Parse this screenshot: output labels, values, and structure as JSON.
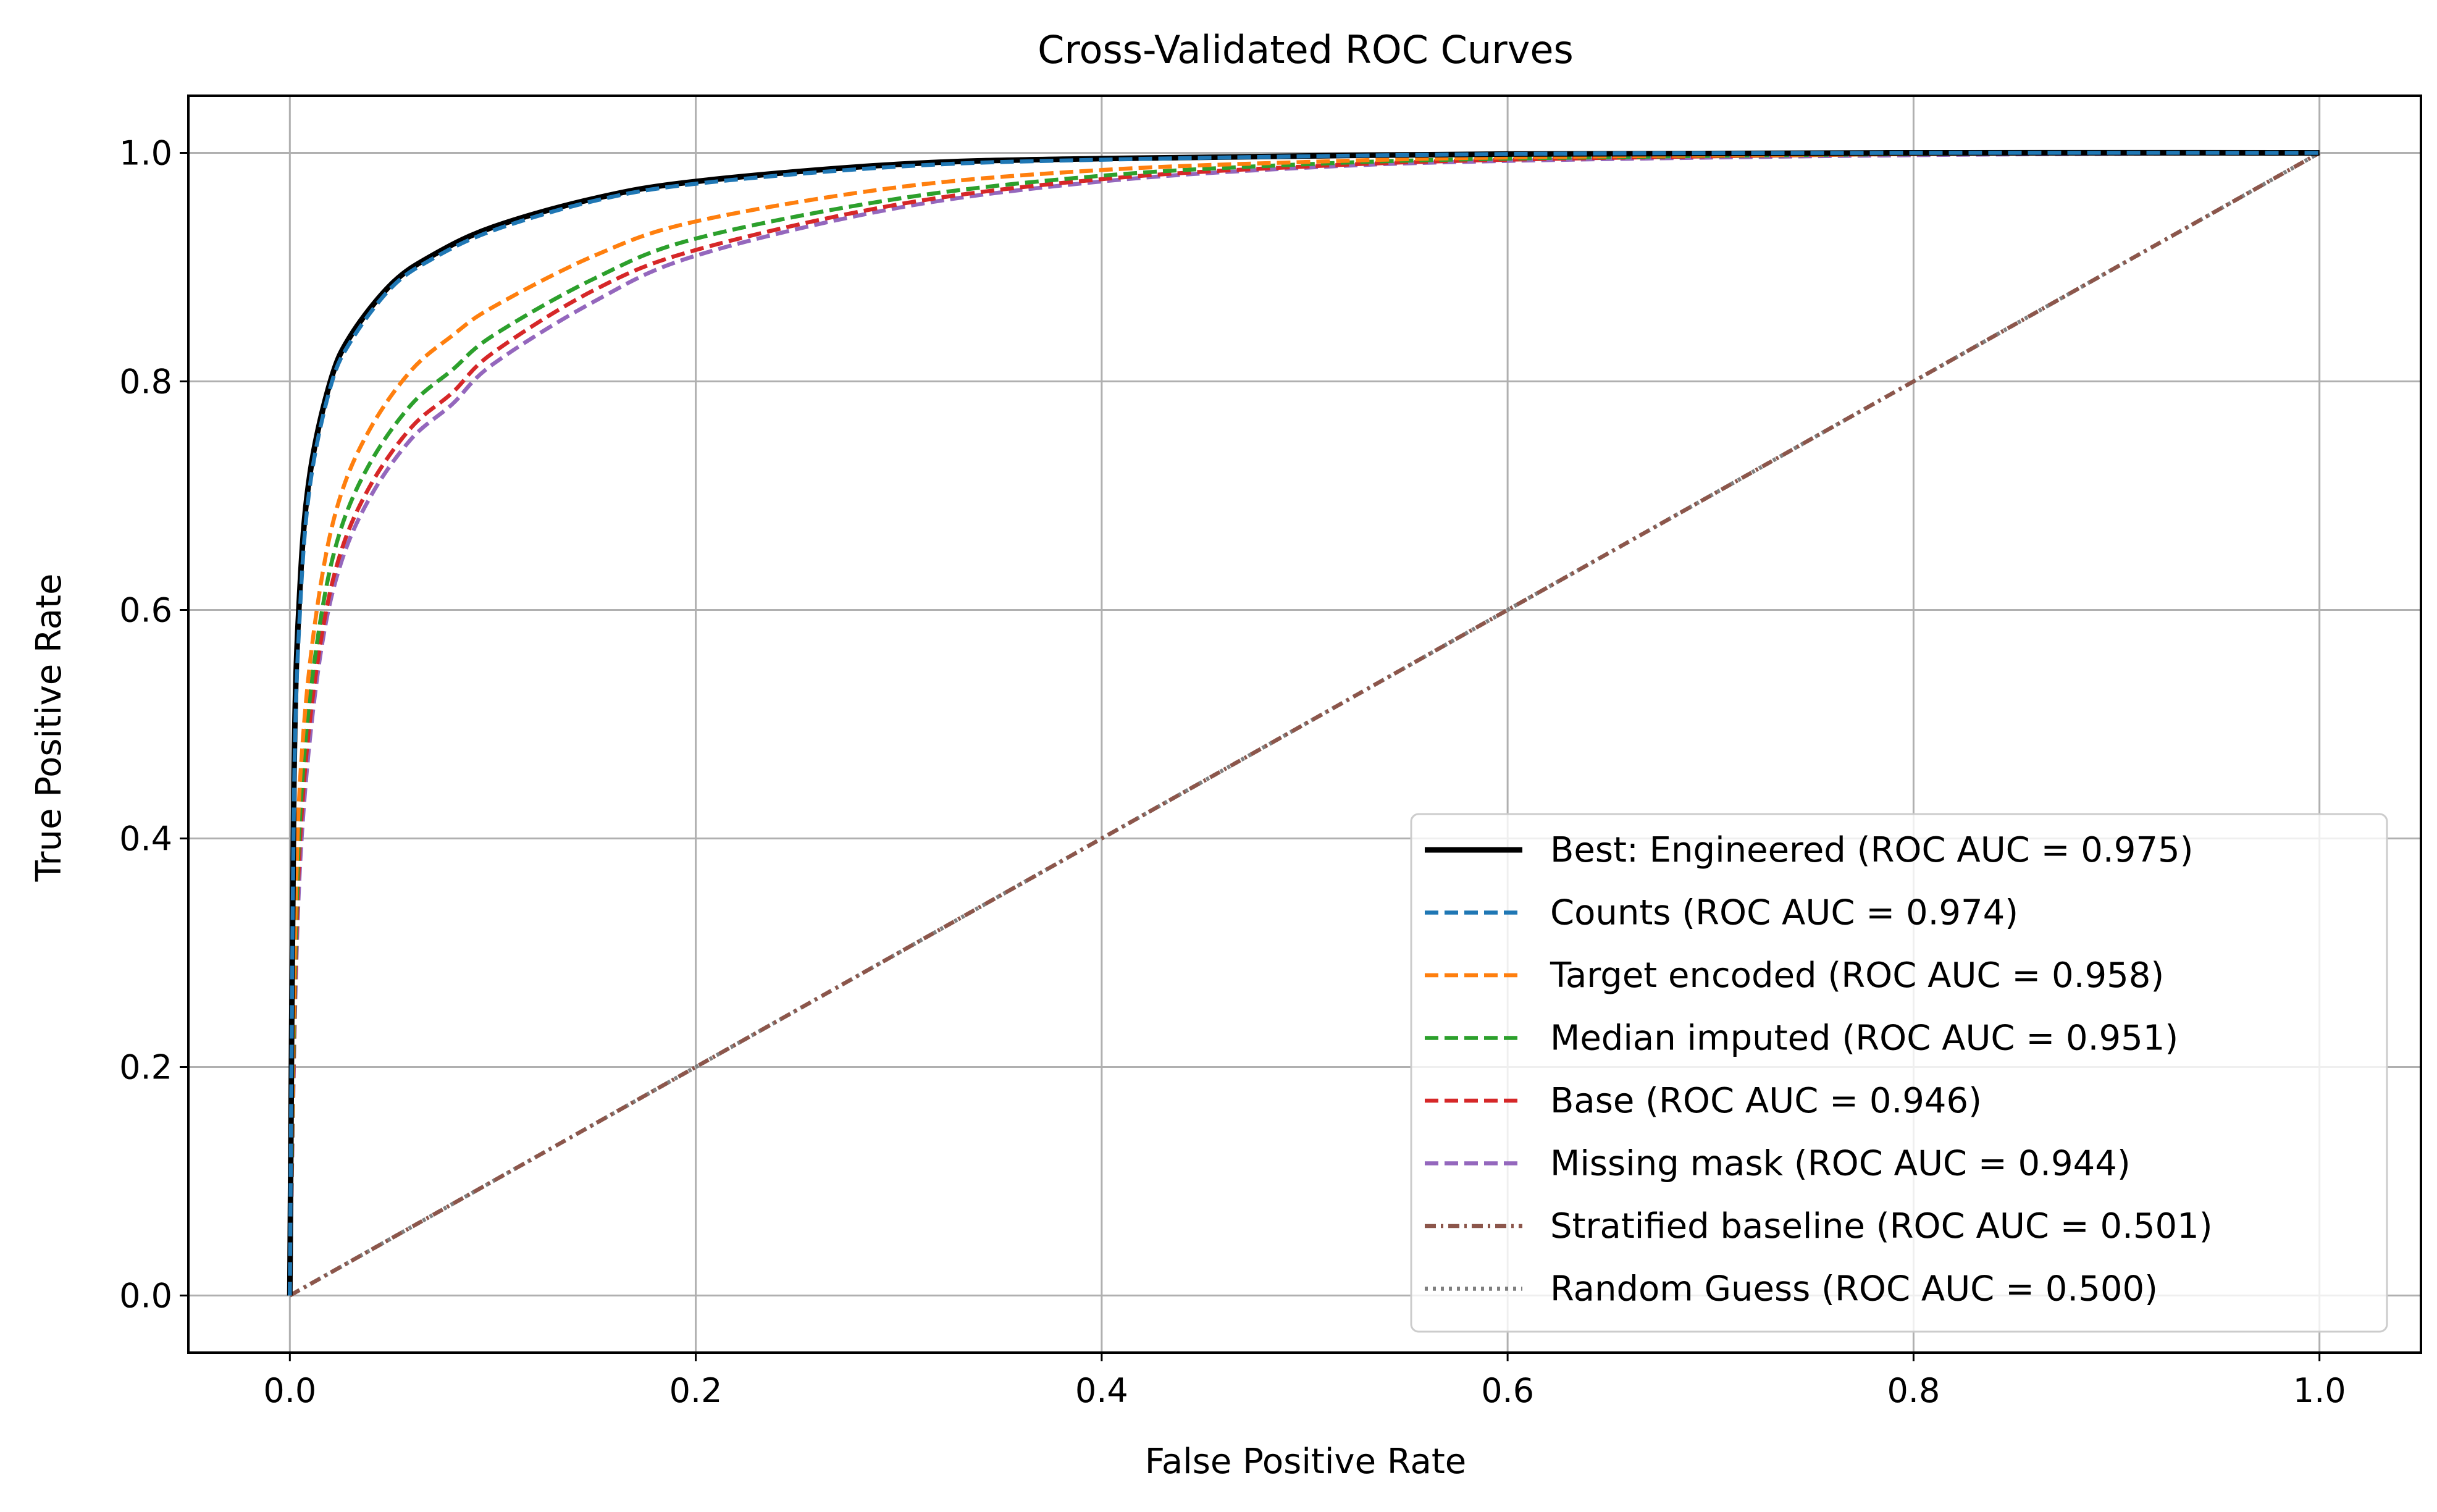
{
  "chart_data": {
    "type": "line",
    "title": "Cross-Validated ROC Curves",
    "xlabel": "False Positive Rate",
    "ylabel": "True Positive Rate",
    "xlim": [
      -0.05,
      1.05
    ],
    "ylim": [
      -0.05,
      1.05
    ],
    "xticks": [
      0.0,
      0.2,
      0.4,
      0.6,
      0.8,
      1.0
    ],
    "yticks": [
      0.0,
      0.2,
      0.4,
      0.6,
      0.8,
      1.0
    ],
    "xtick_labels": [
      "0.0",
      "0.2",
      "0.4",
      "0.6",
      "0.8",
      "1.0"
    ],
    "ytick_labels": [
      "0.0",
      "0.2",
      "0.4",
      "0.6",
      "0.8",
      "1.0"
    ],
    "grid": true,
    "legend_position": "lower right",
    "series": [
      {
        "name": "Best: Engineered (ROC AUC = 0.975)",
        "color": "#000000",
        "style": "solid",
        "x": [
          0.0,
          0.002,
          0.005,
          0.01,
          0.02,
          0.03,
          0.05,
          0.07,
          0.1,
          0.15,
          0.2,
          0.3,
          0.4,
          0.6,
          0.8,
          1.0
        ],
        "y": [
          0.0,
          0.45,
          0.62,
          0.72,
          0.8,
          0.84,
          0.885,
          0.91,
          0.935,
          0.96,
          0.975,
          0.99,
          0.995,
          0.999,
          1.0,
          1.0
        ]
      },
      {
        "name": "Counts (ROC AUC = 0.974)",
        "color": "#1f77b4",
        "style": "dashed",
        "x": [
          0.0,
          0.002,
          0.005,
          0.01,
          0.02,
          0.03,
          0.05,
          0.07,
          0.1,
          0.15,
          0.2,
          0.3,
          0.4,
          0.6,
          0.8,
          1.0
        ],
        "y": [
          0.0,
          0.43,
          0.6,
          0.71,
          0.795,
          0.835,
          0.882,
          0.907,
          0.932,
          0.958,
          0.973,
          0.988,
          0.994,
          0.999,
          1.0,
          1.0
        ]
      },
      {
        "name": "Target encoded (ROC AUC = 0.958)",
        "color": "#ff7f0e",
        "style": "dashed",
        "x": [
          0.0,
          0.003,
          0.007,
          0.015,
          0.025,
          0.04,
          0.06,
          0.08,
          0.1,
          0.15,
          0.2,
          0.3,
          0.4,
          0.5,
          0.6,
          0.8,
          1.0
        ],
        "y": [
          0.0,
          0.35,
          0.5,
          0.62,
          0.7,
          0.76,
          0.81,
          0.84,
          0.865,
          0.91,
          0.94,
          0.97,
          0.985,
          0.992,
          0.996,
          0.999,
          1.0
        ]
      },
      {
        "name": "Median imputed (ROC AUC = 0.951)",
        "color": "#2ca02c",
        "style": "dashed",
        "x": [
          0.0,
          0.003,
          0.007,
          0.015,
          0.025,
          0.04,
          0.06,
          0.08,
          0.1,
          0.15,
          0.2,
          0.3,
          0.4,
          0.5,
          0.6,
          0.8,
          1.0
        ],
        "y": [
          0.0,
          0.32,
          0.47,
          0.59,
          0.67,
          0.73,
          0.78,
          0.81,
          0.84,
          0.89,
          0.925,
          0.96,
          0.98,
          0.99,
          0.995,
          0.999,
          1.0
        ]
      },
      {
        "name": "Base (ROC AUC = 0.946)",
        "color": "#d62728",
        "style": "dashed",
        "x": [
          0.0,
          0.003,
          0.007,
          0.015,
          0.025,
          0.04,
          0.06,
          0.08,
          0.1,
          0.15,
          0.2,
          0.3,
          0.4,
          0.5,
          0.6,
          0.8,
          1.0
        ],
        "y": [
          0.0,
          0.3,
          0.45,
          0.57,
          0.65,
          0.71,
          0.76,
          0.79,
          0.825,
          0.88,
          0.915,
          0.955,
          0.977,
          0.988,
          0.994,
          0.999,
          1.0
        ]
      },
      {
        "name": "Missing mask (ROC AUC = 0.944)",
        "color": "#9467bd",
        "style": "dashed",
        "x": [
          0.0,
          0.003,
          0.007,
          0.015,
          0.025,
          0.04,
          0.06,
          0.08,
          0.1,
          0.15,
          0.2,
          0.3,
          0.4,
          0.5,
          0.6,
          0.8,
          1.0
        ],
        "y": [
          0.0,
          0.28,
          0.43,
          0.56,
          0.64,
          0.7,
          0.75,
          0.78,
          0.815,
          0.87,
          0.91,
          0.952,
          0.975,
          0.987,
          0.993,
          0.998,
          1.0
        ]
      },
      {
        "name": "Stratified baseline (ROC AUC = 0.501)",
        "color": "#8c564b",
        "style": "dashdot",
        "x": [
          0.0,
          1.0
        ],
        "y": [
          0.0,
          1.0
        ]
      },
      {
        "name": "Random Guess (ROC AUC = 0.500)",
        "color": "#7f7f7f",
        "style": "dotted",
        "x": [
          0.0,
          1.0
        ],
        "y": [
          0.0,
          1.0
        ]
      }
    ]
  }
}
